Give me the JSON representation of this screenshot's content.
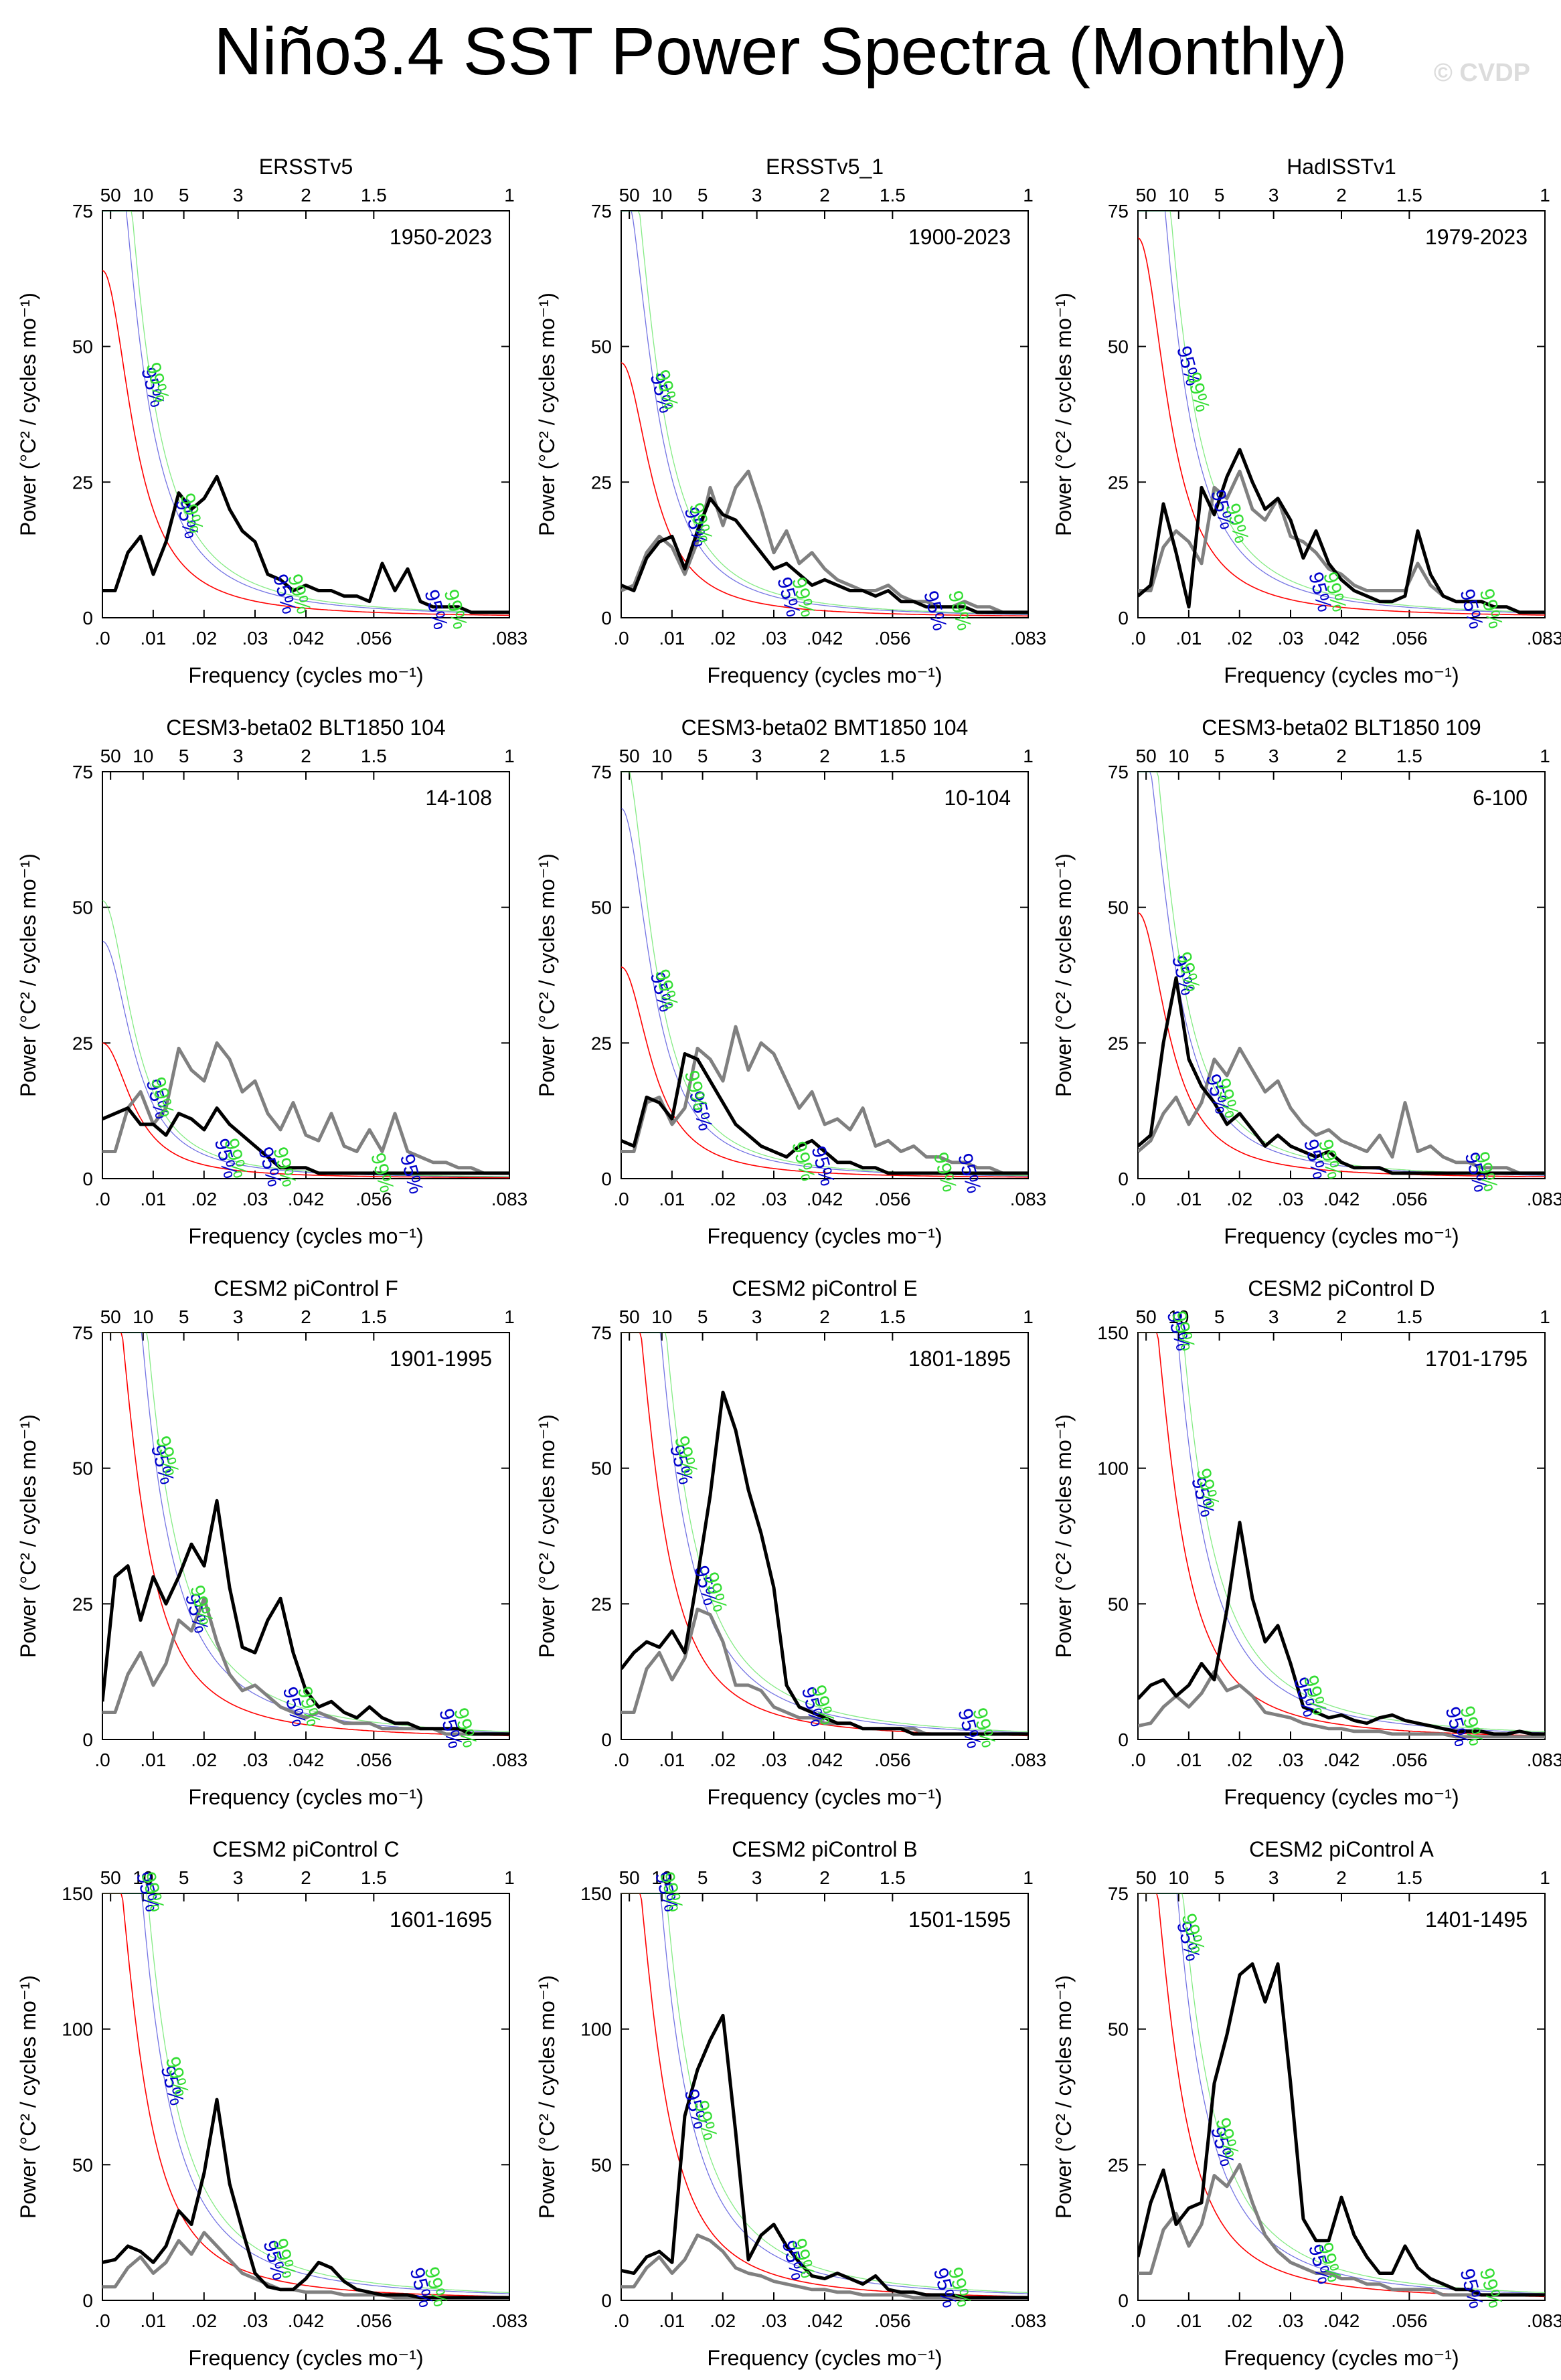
{
  "title": "Niño3.4 SST Power Spectra (Monthly)",
  "credit": "© CVDP",
  "colors": {
    "model": "#000000",
    "obs": "#808080",
    "red_noise": "#ff0000",
    "c95": "#0000cc",
    "c99": "#33dd33"
  },
  "chart_data": [
    {
      "type": "line",
      "title": "ERSSTv5",
      "years": "1950-2023",
      "ylim": [
        0,
        75
      ],
      "yticks": [
        0,
        25,
        50,
        75
      ],
      "red0": 64,
      "c95_label_freqs": [
        0.009,
        0.016,
        0.036,
        0.067
      ],
      "c99_label_freqs": [
        0.01,
        0.017,
        0.039,
        0.071
      ],
      "black": [
        5,
        5,
        12,
        15,
        8,
        14,
        23,
        20,
        22,
        26,
        20,
        16,
        14,
        8,
        7,
        5,
        6,
        5,
        5,
        4,
        4,
        3,
        10,
        5,
        9,
        3,
        2,
        2,
        2,
        1,
        1,
        1,
        1
      ],
      "gray": null
    },
    {
      "type": "line",
      "title": "ERSSTv5_1",
      "years": "1900-2023",
      "ylim": [
        0,
        75
      ],
      "yticks": [
        0,
        25,
        50,
        75
      ],
      "red0": 47,
      "c95_label_freqs": [
        0.007,
        0.014,
        0.033,
        0.063
      ],
      "c99_label_freqs": [
        0.008,
        0.015,
        0.036,
        0.068
      ],
      "black": [
        6,
        5,
        11,
        14,
        15,
        9,
        16,
        22,
        19,
        18,
        15,
        12,
        9,
        10,
        8,
        6,
        7,
        6,
        5,
        5,
        4,
        5,
        3,
        3,
        2,
        2,
        2,
        2,
        1,
        1,
        1,
        1,
        1
      ],
      "gray": [
        5,
        6,
        12,
        15,
        13,
        8,
        14,
        24,
        17,
        24,
        27,
        20,
        12,
        16,
        10,
        12,
        9,
        7,
        6,
        5,
        5,
        6,
        4,
        3,
        3,
        2,
        2,
        3,
        2,
        2,
        1,
        1,
        1
      ]
    },
    {
      "type": "line",
      "title": "HadISSTv1",
      "years": "1979-2023",
      "ylim": [
        0,
        75
      ],
      "yticks": [
        0,
        25,
        50,
        75
      ],
      "red0": 70,
      "c95_label_freqs": [
        0.009,
        0.016,
        0.036,
        0.067
      ],
      "c99_label_freqs": [
        0.011,
        0.019,
        0.039,
        0.071
      ],
      "black": [
        4,
        6,
        21,
        12,
        2,
        24,
        19,
        26,
        31,
        25,
        20,
        22,
        18,
        11,
        16,
        10,
        7,
        5,
        4,
        3,
        3,
        4,
        16,
        8,
        4,
        3,
        3,
        3,
        2,
        2,
        1,
        1,
        1
      ],
      "gray": [
        5,
        5,
        13,
        16,
        14,
        10,
        24,
        22,
        27,
        20,
        18,
        22,
        15,
        14,
        12,
        9,
        8,
        6,
        5,
        5,
        5,
        5,
        10,
        6,
        4,
        3,
        3,
        3,
        2,
        2,
        1,
        1,
        1
      ]
    },
    {
      "type": "line",
      "title": "CESM3-beta02 BLT1850 104",
      "years": "14-108",
      "ylim": [
        0,
        75
      ],
      "yticks": [
        0,
        25,
        50,
        75
      ],
      "red0": 25,
      "c95_label_freqs": [
        0.01,
        0.024,
        0.033,
        0.062
      ],
      "c99_label_freqs": [
        0.011,
        0.026,
        0.036,
        0.056
      ],
      "black": [
        11,
        12,
        13,
        10,
        10,
        8,
        12,
        11,
        9,
        13,
        10,
        8,
        6,
        4,
        2,
        2,
        2,
        1,
        1,
        1,
        1,
        1,
        1,
        1,
        1,
        1,
        1,
        1,
        1,
        1,
        1,
        1,
        1
      ],
      "gray": [
        5,
        5,
        13,
        16,
        10,
        13,
        24,
        20,
        18,
        25,
        22,
        16,
        18,
        12,
        9,
        14,
        8,
        7,
        12,
        6,
        5,
        9,
        5,
        12,
        5,
        4,
        3,
        3,
        2,
        2,
        1,
        1,
        1
      ]
    },
    {
      "type": "line",
      "title": "CESM3-beta02 BMT1850 104",
      "years": "10-104",
      "ylim": [
        0,
        75
      ],
      "yticks": [
        0,
        25,
        50,
        75
      ],
      "red0": 39,
      "c95_label_freqs": [
        0.007,
        0.015,
        0.04,
        0.07
      ],
      "c99_label_freqs": [
        0.008,
        0.014,
        0.036,
        0.065
      ],
      "black": [
        7,
        6,
        15,
        14,
        11,
        23,
        22,
        18,
        14,
        10,
        8,
        6,
        5,
        4,
        6,
        7,
        5,
        3,
        3,
        2,
        2,
        1,
        1,
        1,
        1,
        1,
        1,
        1,
        1,
        1,
        1,
        1,
        1
      ],
      "gray": [
        5,
        5,
        14,
        15,
        10,
        13,
        24,
        22,
        18,
        28,
        20,
        25,
        23,
        18,
        13,
        16,
        10,
        11,
        9,
        13,
        6,
        7,
        5,
        6,
        4,
        4,
        3,
        3,
        2,
        2,
        1,
        1,
        1
      ]
    },
    {
      "type": "line",
      "title": "CESM3-beta02 BLT1850 109",
      "years": "6-100",
      "ylim": [
        0,
        75
      ],
      "yticks": [
        0,
        25,
        50,
        75
      ],
      "red0": 49,
      "c95_label_freqs": [
        0.008,
        0.015,
        0.035,
        0.068
      ],
      "c99_label_freqs": [
        0.009,
        0.017,
        0.038,
        0.07
      ],
      "black": [
        6,
        8,
        25,
        37,
        22,
        17,
        14,
        10,
        12,
        9,
        6,
        8,
        6,
        5,
        4,
        5,
        3,
        2,
        2,
        2,
        1,
        1,
        1,
        1,
        1,
        1,
        1,
        1,
        1,
        1,
        1,
        1,
        1
      ],
      "gray": [
        5,
        7,
        12,
        15,
        10,
        14,
        22,
        19,
        24,
        20,
        16,
        18,
        13,
        10,
        8,
        9,
        7,
        6,
        5,
        8,
        4,
        14,
        5,
        6,
        4,
        3,
        3,
        2,
        2,
        2,
        1,
        1,
        1
      ]
    },
    {
      "type": "line",
      "title": "CESM2 piControl F",
      "years": "1901-1995",
      "ylim": [
        0,
        75
      ],
      "yticks": [
        0,
        25,
        50,
        75
      ],
      "red0": 100,
      "c95_label_freqs": [
        0.011,
        0.018,
        0.038,
        0.07
      ],
      "c99_label_freqs": [
        0.012,
        0.019,
        0.041,
        0.073
      ],
      "black": [
        7,
        30,
        32,
        22,
        30,
        25,
        30,
        36,
        32,
        44,
        28,
        17,
        16,
        22,
        26,
        16,
        9,
        6,
        7,
        5,
        4,
        6,
        4,
        3,
        3,
        2,
        2,
        2,
        2,
        1,
        1,
        1,
        1
      ],
      "gray": [
        5,
        5,
        12,
        16,
        10,
        14,
        22,
        20,
        26,
        18,
        12,
        9,
        10,
        8,
        6,
        5,
        4,
        5,
        4,
        3,
        3,
        3,
        2,
        2,
        2,
        2,
        2,
        1,
        1,
        1,
        1,
        1,
        1
      ],
      "gray_first": true
    },
    {
      "type": "line",
      "title": "CESM2 piControl E",
      "years": "1801-1895",
      "ylim": [
        0,
        75
      ],
      "yticks": [
        0,
        25,
        50,
        75
      ],
      "red0": 100,
      "c95_label_freqs": [
        0.011,
        0.016,
        0.038,
        0.07
      ],
      "c99_label_freqs": [
        0.012,
        0.018,
        0.04,
        0.073
      ],
      "black": [
        13,
        16,
        18,
        17,
        20,
        16,
        30,
        45,
        64,
        57,
        46,
        38,
        28,
        10,
        6,
        5,
        4,
        3,
        3,
        2,
        2,
        2,
        2,
        1,
        1,
        1,
        1,
        1,
        1,
        1,
        1,
        1,
        1
      ],
      "gray": [
        5,
        5,
        13,
        16,
        11,
        15,
        24,
        23,
        18,
        10,
        10,
        9,
        6,
        5,
        4,
        4,
        3,
        3,
        3,
        2,
        2,
        2,
        2,
        2,
        1,
        1,
        1,
        1,
        1,
        1,
        1,
        1,
        1
      ],
      "gray_first": true
    },
    {
      "type": "line",
      "title": "CESM2 piControl D",
      "years": "1701-1795",
      "ylim": [
        0,
        150
      ],
      "yticks": [
        0,
        50,
        100,
        150
      ],
      "red0": 200,
      "c95_label_freqs": [
        0.007,
        0.012,
        0.033,
        0.064
      ],
      "c99_label_freqs": [
        0.008,
        0.013,
        0.035,
        0.067
      ],
      "black": [
        15,
        20,
        22,
        16,
        20,
        28,
        22,
        48,
        80,
        52,
        36,
        42,
        28,
        12,
        10,
        8,
        9,
        7,
        6,
        8,
        9,
        7,
        6,
        5,
        4,
        3,
        3,
        3,
        2,
        2,
        3,
        2,
        2
      ],
      "gray": [
        5,
        6,
        12,
        16,
        12,
        17,
        25,
        18,
        20,
        16,
        10,
        9,
        8,
        6,
        5,
        4,
        4,
        3,
        3,
        3,
        2,
        2,
        2,
        2,
        2,
        1,
        1,
        1,
        1,
        1,
        1,
        1,
        1
      ],
      "gray_first": true
    },
    {
      "type": "line",
      "title": "CESM2 piControl C",
      "years": "1601-1695",
      "ylim": [
        0,
        150
      ],
      "yticks": [
        0,
        50,
        100,
        150
      ],
      "red0": 200,
      "c95_label_freqs": [
        0.008,
        0.013,
        0.034,
        0.064
      ],
      "c99_label_freqs": [
        0.009,
        0.014,
        0.036,
        0.067
      ],
      "black": [
        14,
        15,
        20,
        18,
        14,
        20,
        33,
        28,
        47,
        74,
        43,
        26,
        10,
        5,
        4,
        4,
        8,
        14,
        12,
        7,
        4,
        3,
        2,
        2,
        2,
        1,
        1,
        1,
        1,
        1,
        1,
        1,
        1
      ],
      "gray": [
        5,
        5,
        12,
        16,
        10,
        14,
        22,
        17,
        25,
        20,
        15,
        10,
        8,
        6,
        4,
        4,
        3,
        3,
        3,
        2,
        2,
        2,
        2,
        1,
        1,
        1,
        1,
        1,
        1,
        1,
        1,
        1,
        1
      ],
      "gray_first": true
    },
    {
      "type": "line",
      "title": "CESM2 piControl B",
      "years": "1501-1595",
      "ylim": [
        0,
        150
      ],
      "yticks": [
        0,
        50,
        100,
        150
      ],
      "red0": 200,
      "c95_label_freqs": [
        0.008,
        0.014,
        0.034,
        0.065
      ],
      "c99_label_freqs": [
        0.009,
        0.016,
        0.036,
        0.068
      ],
      "black": [
        11,
        10,
        16,
        18,
        14,
        68,
        85,
        96,
        105,
        62,
        15,
        24,
        28,
        20,
        14,
        9,
        8,
        10,
        8,
        6,
        9,
        4,
        3,
        3,
        2,
        2,
        2,
        1,
        1,
        1,
        1,
        1,
        1
      ],
      "gray": [
        5,
        5,
        12,
        16,
        10,
        15,
        24,
        22,
        18,
        12,
        10,
        9,
        7,
        6,
        5,
        4,
        4,
        3,
        3,
        2,
        2,
        2,
        2,
        1,
        1,
        1,
        1,
        1,
        1,
        1,
        1,
        1,
        1
      ],
      "gray_first": true
    },
    {
      "type": "line",
      "title": "CESM2 piControl A",
      "years": "1401-1495",
      "ylim": [
        0,
        75
      ],
      "yticks": [
        0,
        25,
        50,
        75
      ],
      "y_second_tick_label": "25",
      "red0": 100,
      "c95_label_freqs": [
        0.009,
        0.016,
        0.036,
        0.067
      ],
      "c99_label_freqs": [
        0.01,
        0.017,
        0.038,
        0.071
      ],
      "black": [
        8,
        18,
        24,
        14,
        17,
        18,
        40,
        49,
        60,
        62,
        55,
        62,
        40,
        15,
        11,
        11,
        19,
        12,
        8,
        5,
        5,
        10,
        6,
        4,
        3,
        2,
        2,
        1,
        1,
        1,
        1,
        1,
        1
      ],
      "gray": [
        5,
        5,
        13,
        16,
        10,
        14,
        23,
        21,
        25,
        18,
        12,
        9,
        7,
        6,
        5,
        5,
        4,
        4,
        3,
        3,
        2,
        2,
        2,
        2,
        1,
        1,
        1,
        1,
        1,
        1,
        1,
        1,
        1
      ],
      "gray_first": true
    }
  ],
  "axis_labels": {
    "xlabel": "Frequency (cycles mo⁻¹)",
    "ylabel": "Power (°C² / cycles mo⁻¹)",
    "x_ticks": [
      ".0",
      ".01",
      ".02",
      ".03",
      ".042",
      ".056",
      ".083"
    ],
    "x_tick_values": [
      0,
      0.0104,
      0.0208,
      0.03125,
      0.04167,
      0.05556,
      0.08333
    ],
    "top_ticks": [
      "50",
      "10",
      "5",
      "3",
      "2",
      "1.5",
      "1"
    ],
    "top_tick_periods_years": [
      50,
      10,
      5,
      3,
      2,
      1.5,
      1
    ],
    "label_95": "95%",
    "label_99": "99%"
  }
}
